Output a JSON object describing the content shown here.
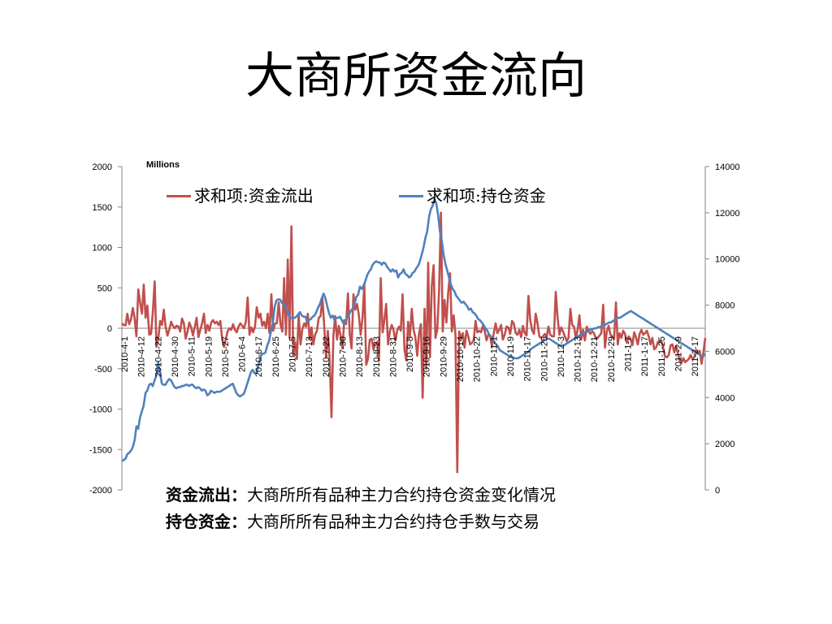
{
  "title": "大商所资金流向",
  "chart_data": {
    "type": "line",
    "unit_label": "Millions",
    "left_axis": {
      "min": -2000,
      "max": 2000,
      "ticks": [
        "2000",
        "1500",
        "1000",
        "500",
        "0",
        "-500",
        "-1000",
        "-1500",
        "-2000"
      ]
    },
    "right_axis": {
      "min": 0,
      "max": 14000,
      "ticks": [
        "14000",
        "12000",
        "10000",
        "8000",
        "6000",
        "4000",
        "2000",
        "0"
      ]
    },
    "x_labels": [
      "2010-4-1",
      "2010-4-12",
      "2010-4-22",
      "2010-4-30",
      "2010-5-11",
      "2010-5-19",
      "2010-5-27",
      "2010-6-4",
      "2010-6-17",
      "2010-6-25",
      "2010-7-5",
      "2010-7-13",
      "2010-7-22",
      "2010-7-30",
      "2010-8-13",
      "2010-8-23",
      "2010-8-31",
      "2010-9-8",
      "2010-9-16",
      "2010-9-29",
      "2010-10-14",
      "2010-10-22",
      "2010-11-1",
      "2010-11-9",
      "2010-11-17",
      "2010-11-25",
      "2010-12-3",
      "2010-12-13",
      "2010-12-21",
      "2010-12-29",
      "2011-1-7",
      "2011-1-17",
      "2011-1-25",
      "2011-2-9",
      "2011-2-17"
    ],
    "legend_position": "top",
    "series": [
      {
        "name": "求和项:资金流出",
        "axis": "left",
        "color": "#c0504d",
        "values": [
          60,
          40,
          35,
          180,
          50,
          110,
          250,
          120,
          -100,
          480,
          320,
          180,
          540,
          130,
          280,
          -80,
          -70,
          200,
          580,
          -230,
          -120,
          90,
          40,
          230,
          20,
          -90,
          -20,
          80,
          30,
          0,
          30,
          20,
          -40,
          120,
          60,
          -130,
          -40,
          70,
          10,
          -90,
          20,
          130,
          -110,
          -20,
          60,
          180,
          -60,
          40,
          -30,
          70,
          100,
          60,
          80,
          40,
          90,
          -130,
          -230,
          -140,
          -40,
          0,
          -20,
          50,
          -20,
          -50,
          20,
          60,
          30,
          0,
          80,
          380,
          -80,
          10,
          -50,
          20,
          260,
          130,
          180,
          30,
          80,
          0,
          180,
          -60,
          420,
          -30,
          60,
          60,
          320,
          50,
          -40,
          620,
          -80,
          850,
          -120,
          1260,
          -330,
          -170,
          -380,
          170,
          -200,
          -10,
          60,
          20,
          180,
          -140,
          10,
          -200,
          -80,
          -30,
          130,
          150,
          380,
          20,
          -360,
          -30,
          -400,
          -1100,
          -100,
          150,
          -140,
          30,
          -100,
          -250,
          100,
          50,
          430,
          -70,
          -250,
          420,
          230,
          300,
          160,
          -80,
          130,
          550,
          -450,
          -380,
          -140,
          -130,
          -260,
          -200,
          -170,
          -400,
          620,
          -50,
          100,
          300,
          -200,
          -40,
          40,
          -20,
          -150,
          -30,
          20,
          -30,
          420,
          -260,
          -400,
          80,
          -100,
          240,
          -20,
          -110,
          -340,
          -70,
          50,
          -860,
          240,
          -500,
          810,
          -360,
          520,
          780,
          -120,
          -20,
          460,
          1430,
          -40,
          350,
          70,
          440,
          680,
          -40,
          160,
          -80,
          -1780,
          -40,
          -120,
          -60,
          -240,
          -30,
          -100,
          -200,
          -180,
          -150,
          90,
          -50,
          -30,
          -50,
          30,
          -30,
          -150,
          -80,
          -90,
          -230,
          -60,
          60,
          -60,
          -20,
          40,
          -140,
          -80,
          20,
          10,
          -70,
          90,
          60,
          -60,
          -80,
          -20,
          -110,
          30,
          -60,
          -90,
          400,
          100,
          -20,
          -70,
          180,
          60,
          -100,
          -120,
          -100,
          -70,
          -110,
          20,
          -80,
          -100,
          -100,
          450,
          130,
          -80,
          10,
          -40,
          -100,
          -160,
          -120,
          240,
          40,
          20,
          -120,
          -20,
          160,
          -140,
          -20,
          -150,
          20,
          -30,
          -70,
          -40,
          -60,
          -130,
          -120,
          -90,
          -60,
          290,
          -240,
          -40,
          30,
          -80,
          -100,
          -130,
          320,
          -200,
          -60,
          -120,
          -30,
          -70,
          -180,
          -100,
          -130,
          -210,
          -50,
          -110,
          -200,
          -70,
          -20,
          -80,
          -60,
          -30,
          -100,
          -200,
          -120,
          -260,
          -240,
          -170,
          -160,
          -160,
          -250,
          -350,
          -360,
          -330,
          -210,
          -200,
          -300,
          -220,
          -310,
          -400,
          -430,
          -370,
          -420,
          -400,
          -380,
          -330,
          -380,
          -360,
          -270,
          -300,
          -280,
          -440,
          -290,
          -120
        ]
      },
      {
        "name": "求和项:持仓资金",
        "axis": "right",
        "color": "#4f81bd",
        "values": [
          1250,
          1300,
          1350,
          1550,
          1600,
          1700,
          1850,
          2150,
          2750,
          2650,
          3150,
          3400,
          3650,
          4200,
          4300,
          4550,
          4600,
          4500,
          4750,
          4950,
          5500,
          5050,
          4600,
          4550,
          4550,
          4700,
          4800,
          4750,
          4600,
          4450,
          4400,
          4450,
          4450,
          4500,
          4500,
          4550,
          4550,
          4500,
          4550,
          4550,
          4450,
          4400,
          4450,
          4400,
          4300,
          4350,
          4300,
          4100,
          4150,
          4300,
          4250,
          4200,
          4250,
          4250,
          4250,
          4300,
          4350,
          4400,
          4450,
          4500,
          4550,
          4600,
          4400,
          4200,
          4100,
          4050,
          4100,
          4150,
          4350,
          4600,
          4850,
          5100,
          5200,
          5050,
          5050,
          5350,
          5650,
          5900,
          5900,
          5950,
          6250,
          6450,
          6850,
          7200,
          7900,
          8200,
          8250,
          8250,
          8100,
          8050,
          7950,
          7800,
          7500,
          7450,
          7450,
          7450,
          7500,
          7600,
          7700,
          7550,
          7500,
          7500,
          7300,
          7350,
          7400,
          7500,
          7550,
          7700,
          7900,
          8050,
          8300,
          8500,
          8300,
          7950,
          7650,
          7450,
          7550,
          7350,
          7450,
          7450,
          7500,
          7350,
          7200,
          7300,
          7500,
          7600,
          7750,
          7850,
          8050,
          8350,
          8450,
          8800,
          8700,
          8850,
          9050,
          9300,
          9450,
          9550,
          9750,
          9850,
          9900,
          9850,
          9850,
          9750,
          9850,
          9800,
          9650,
          9550,
          9450,
          9550,
          9450,
          9500,
          9200,
          9350,
          9400,
          9550,
          9350,
          9300,
          9200,
          9250,
          9400,
          9450,
          9600,
          9700,
          9900,
          10200,
          10500,
          10900,
          11200,
          11800,
          12150,
          12300,
          12600,
          12400,
          11900,
          11200,
          10800,
          10200,
          9800,
          9500,
          9200,
          8900,
          8700,
          8600,
          8400,
          8300,
          8200,
          8100,
          8150,
          8050,
          7950,
          7800,
          7850,
          7700,
          7650,
          7550,
          7400,
          7350,
          7250,
          7150,
          7000,
          6900,
          6750,
          6650,
          6550,
          6400,
          6300,
          6200,
          6050,
          6000,
          5950,
          5900,
          5850,
          5800,
          5800,
          5750,
          5700,
          5700,
          5700,
          5750,
          5800,
          5850,
          5900,
          5950,
          6000,
          6100,
          6150,
          6200,
          6250,
          6300,
          6350,
          6400,
          6450,
          6500,
          6550,
          6550,
          6500,
          6450,
          6400,
          6350,
          6300,
          6250,
          6250,
          6250,
          6300,
          6350,
          6400,
          6450,
          6500,
          6550,
          6600,
          6650,
          6700,
          6750,
          6800,
          6800,
          6850,
          6900,
          6950,
          6950,
          7000,
          7000,
          7050,
          7050,
          7100,
          7150,
          7150,
          7200,
          7250,
          7250,
          7300,
          7350,
          7400,
          7450,
          7450,
          7500,
          7550,
          7600,
          7650,
          7700,
          7750,
          7700,
          7650,
          7600,
          7550,
          7500,
          7450,
          7400,
          7350,
          7300,
          7250,
          7200,
          7150,
          7100,
          7050,
          7000,
          6950,
          6900,
          6850,
          6800,
          6750,
          6700,
          6650,
          6600,
          6550,
          6500,
          6450,
          6400,
          6350,
          6300,
          6250,
          6200,
          6150,
          6100,
          6050,
          6000,
          5950,
          5900,
          5850,
          5800,
          5800,
          5900
        ]
      }
    ]
  },
  "notes": [
    {
      "term": "资金流出：",
      "text": "大商所所有品种主力合约持仓资金变化情况"
    },
    {
      "term": "持仓资金：",
      "text": "大商所所有品种主力合约持仓手数与交易"
    }
  ]
}
